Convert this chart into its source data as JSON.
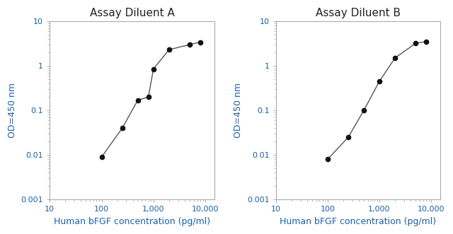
{
  "title_A": "Assay Diluent A",
  "title_B": "Assay Diluent B",
  "xlabel": "Human bFGF concentration (pg/ml)",
  "ylabel": "OD=450 nm",
  "x_A": [
    100,
    250,
    500,
    800,
    1000,
    2000,
    5000,
    8000
  ],
  "y_A": [
    0.009,
    0.04,
    0.17,
    0.2,
    0.85,
    2.3,
    3.0,
    3.4
  ],
  "x_B": [
    100,
    250,
    500,
    1000,
    2000,
    5000,
    8000
  ],
  "y_B": [
    0.008,
    0.025,
    0.1,
    0.45,
    1.5,
    3.2,
    3.5
  ],
  "xlim": [
    10,
    15000
  ],
  "ylim": [
    0.001,
    10
  ],
  "line_color": "#555555",
  "marker_color": "#111111",
  "title_fontsize": 11,
  "label_fontsize": 9,
  "tick_label_color": "#1a5fa8",
  "label_color": "#1a5fa8",
  "title_color": "#222222",
  "spine_color": "#aaaaaa",
  "bg_color": "#ffffff",
  "xticks": [
    10,
    100,
    1000,
    10000
  ],
  "xtick_labels": [
    "10",
    "100",
    "1,000",
    "10,000"
  ],
  "yticks": [
    0.001,
    0.01,
    0.1,
    1,
    10
  ],
  "ytick_labels": [
    "0.001",
    "0.01",
    "0.1",
    "1",
    "10"
  ]
}
